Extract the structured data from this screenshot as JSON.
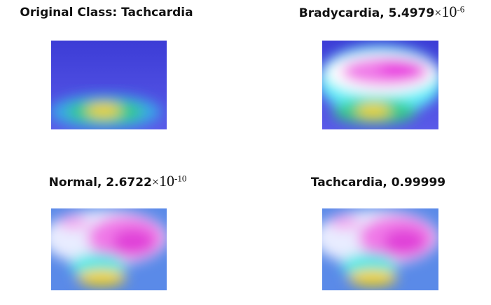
{
  "panels": [
    {
      "title": "Original Class: Tachcardia"
    },
    {
      "title": "Bradycardia, 5.4979",
      "times": "×",
      "base": "10",
      "exponent": "-6"
    },
    {
      "title": "Normal, 2.6722",
      "times": "×",
      "base": "10",
      "exponent": "-10"
    },
    {
      "title": "Tachcardia, 0.99999"
    }
  ]
}
